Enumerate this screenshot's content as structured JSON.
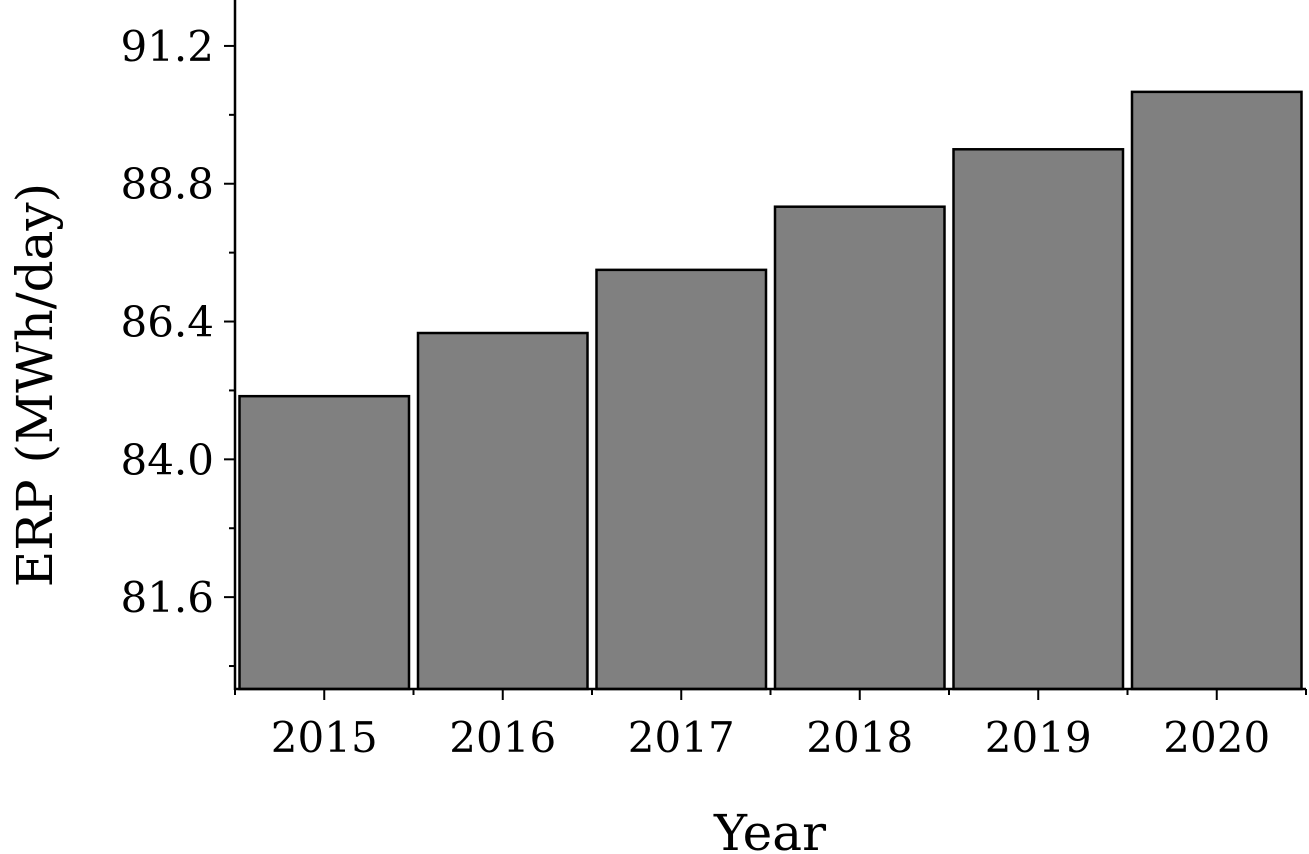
{
  "chart_data": {
    "type": "bar",
    "title": "",
    "xlabel": "Year",
    "ylabel": "ERP (MWh/day)",
    "categories": [
      "2015",
      "2016",
      "2017",
      "2018",
      "2019",
      "2020"
    ],
    "values": [
      85.1,
      86.2,
      87.3,
      88.4,
      89.4,
      90.4
    ],
    "ylim": [
      80.0,
      92.0
    ],
    "yticks": [
      "81.6",
      "84.0",
      "86.4",
      "88.8",
      "91.2"
    ],
    "grid": false,
    "bar_color": "#808080",
    "edge_color": "#000000"
  }
}
